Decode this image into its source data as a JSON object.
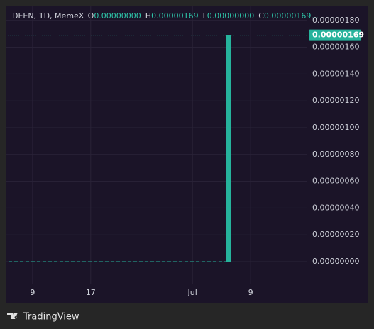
{
  "chart_data": {
    "type": "candlestick",
    "legend": {
      "symbol": "DEEN, 1D, MemeX",
      "o": "O",
      "open": "0.00000000",
      "h": "H",
      "high": "0.00000169",
      "l": "L",
      "low": "0.00000000",
      "c": "C",
      "close": "0.00000169..."
    },
    "candles": [
      {
        "x": 187,
        "open": 0,
        "high": 1.69e-06,
        "low": 0,
        "close": 1.69e-06
      }
    ],
    "color": "#26b39c",
    "last_price": {
      "value": 1.69e-06,
      "label": "0.00000169"
    },
    "xlim": [
      156.3,
      197.8
    ],
    "xticks": [
      {
        "value": 160,
        "label": "9"
      },
      {
        "value": 168,
        "label": "17"
      },
      {
        "value": 182,
        "label": "Jul"
      },
      {
        "value": 190,
        "label": "9"
      }
    ],
    "ylim": [
      -1.64e-07,
      1.91e-06
    ],
    "yticks": [
      {
        "value": 0,
        "label": "0.00000000"
      },
      {
        "value": 2e-07,
        "label": "0.00000020"
      },
      {
        "value": 4e-07,
        "label": "0.00000040"
      },
      {
        "value": 6e-07,
        "label": "0.00000060"
      },
      {
        "value": 8e-07,
        "label": "0.00000080"
      },
      {
        "value": 1e-06,
        "label": "0.00000100"
      },
      {
        "value": 1.2e-06,
        "label": "0.00000120"
      },
      {
        "value": 1.4e-06,
        "label": "0.00000140"
      },
      {
        "value": 1.6e-06,
        "label": "0.00000160"
      },
      {
        "value": 1.8e-06,
        "label": "0.00000180"
      }
    ],
    "grid": true,
    "branding": "TradingView"
  }
}
